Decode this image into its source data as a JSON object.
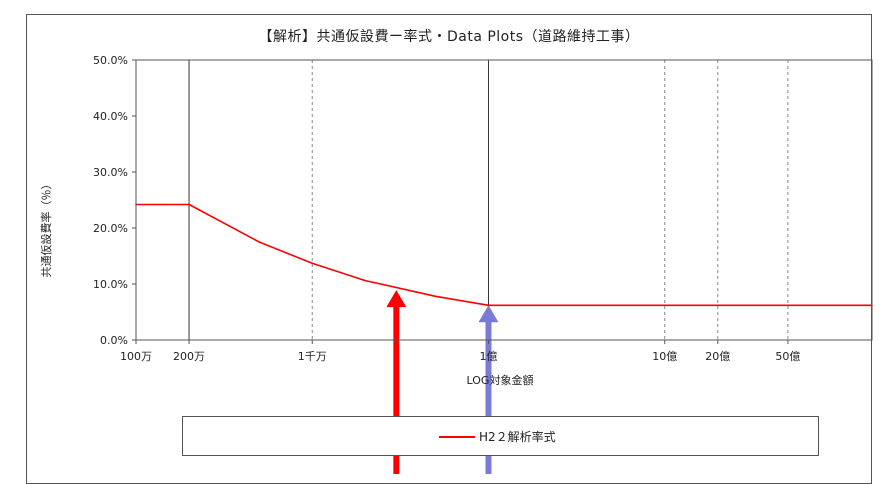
{
  "chart_data": {
    "type": "line",
    "title": "【解析】共通仮設費ー率式・Data Plots（道路維持工事）",
    "xlabel": "LOG対象金額",
    "ylabel": "共通仮設費率（％）",
    "x_scale": "log",
    "xlim": [
      1000000,
      15000000000
    ],
    "ylim": [
      0,
      50
    ],
    "y_ticks": [
      {
        "value": 0,
        "label": "0.0%"
      },
      {
        "value": 10,
        "label": "10.0%"
      },
      {
        "value": 20,
        "label": "20.0%"
      },
      {
        "value": 30,
        "label": "30.0%"
      },
      {
        "value": 40,
        "label": "40.0%"
      },
      {
        "value": 50,
        "label": "50.0%"
      }
    ],
    "x_ticks": [
      {
        "value": 1000000,
        "label": "100万",
        "grid": "none"
      },
      {
        "value": 2000000,
        "label": "200万",
        "grid": "solid"
      },
      {
        "value": 10000000,
        "label": "1千万",
        "grid": "dashed"
      },
      {
        "value": 100000000,
        "label": "1億",
        "grid": "solid"
      },
      {
        "value": 1000000000,
        "label": "10億",
        "grid": "dashed"
      },
      {
        "value": 2000000000,
        "label": "20億",
        "grid": "dashed"
      },
      {
        "value": 5000000000,
        "label": "50億",
        "grid": "dashed"
      }
    ],
    "series": [
      {
        "name": "H2２解析率式",
        "color": "#ff0000",
        "x": [
          1000000,
          2000000,
          5000000,
          10000000,
          20000000,
          50000000,
          100000000,
          1000000000,
          15000000000
        ],
        "y": [
          24.2,
          24.2,
          17.5,
          13.7,
          10.6,
          7.8,
          6.2,
          6.2,
          6.2
        ]
      }
    ],
    "annotations": [
      {
        "type": "arrow",
        "color": "#ff0000",
        "x": 30000000,
        "y": 8.9
      },
      {
        "type": "arrow",
        "color": "#7a7ad8",
        "x": 100000000,
        "y": 6.2
      }
    ],
    "grid": true,
    "legend_position": "bottom"
  }
}
